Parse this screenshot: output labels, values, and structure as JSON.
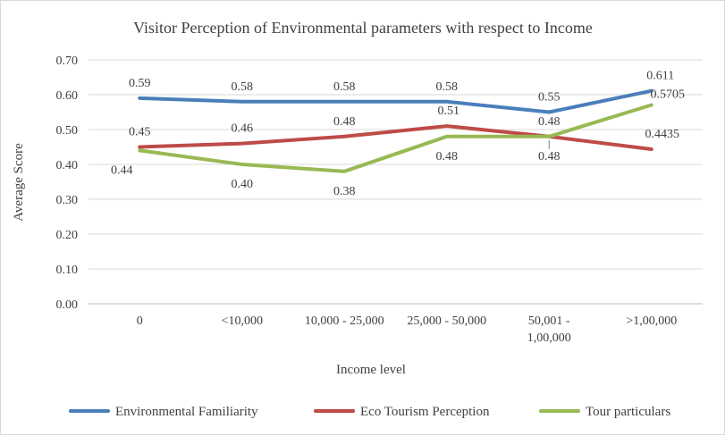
{
  "chart_data": {
    "type": "line",
    "title": "Visitor Perception of Environmental parameters with respect to Income",
    "xlabel": "Income level",
    "ylabel": "Average Score",
    "categories": [
      [
        "0"
      ],
      [
        "<10,000"
      ],
      [
        "10,000 - 25,000"
      ],
      [
        "25,000 - 50,000"
      ],
      [
        "50,001 -",
        "1,00,000"
      ],
      [
        ">1,00,000"
      ]
    ],
    "ylim": [
      0,
      0.7
    ],
    "yticks": [
      "0.00",
      "0.10",
      "0.20",
      "0.30",
      "0.40",
      "0.50",
      "0.60",
      "0.70"
    ],
    "grid": true,
    "legend_position": "bottom",
    "series": [
      {
        "name": "Environmental Familiarity",
        "color": "#4a7ebb",
        "values": [
          0.59,
          0.58,
          0.58,
          0.58,
          0.55,
          0.611
        ],
        "labels": [
          "0.59",
          "0.58",
          "0.58",
          "0.58",
          "0.55",
          "0.611"
        ]
      },
      {
        "name": "Eco Tourism Perception",
        "color": "#be4b48",
        "values": [
          0.45,
          0.46,
          0.48,
          0.51,
          0.48,
          0.4435
        ],
        "labels": [
          "0.45",
          "0.46",
          "0.48",
          "0.51",
          "0.48",
          "0.4435"
        ]
      },
      {
        "name": "Tour particulars",
        "color": "#98b954",
        "values": [
          0.44,
          0.4,
          0.38,
          0.48,
          0.48,
          0.5705
        ],
        "labels": [
          "0.44",
          "0.40",
          "0.38",
          "0.48",
          "0.48",
          "0.5705"
        ]
      }
    ]
  }
}
